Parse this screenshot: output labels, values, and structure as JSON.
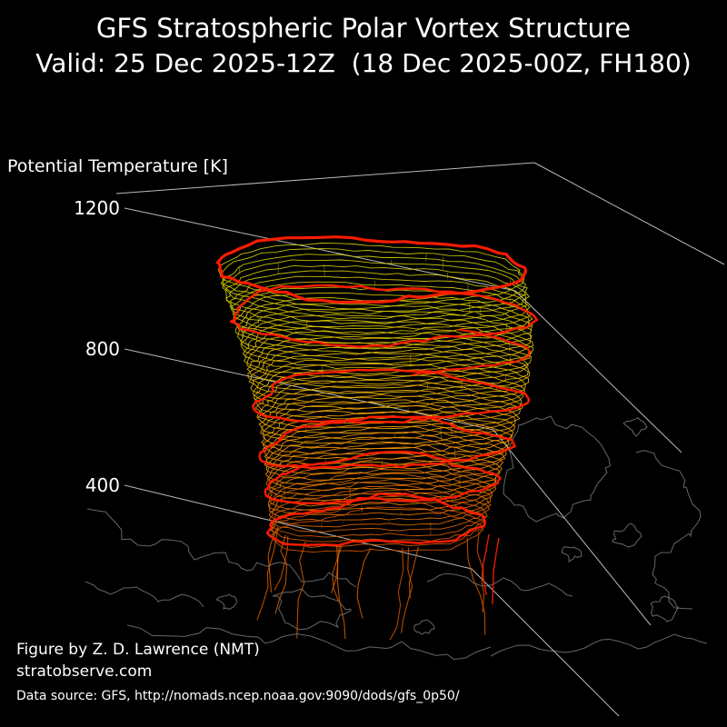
{
  "header": {
    "title": "GFS Stratospheric Polar Vortex Structure",
    "subtitle": "Valid: 25 Dec 2025-12Z  (18 Dec 2025-00Z, FH180)"
  },
  "axis": {
    "label": "Potential Temperature [K]",
    "ticks": [
      "1200",
      "800",
      "400"
    ]
  },
  "footer": {
    "credit": "Figure by Z. D. Lawrence (NMT)",
    "site": "stratobserve.com",
    "source": "Data source: GFS, http://nomads.ncep.noaa.gov:9090/dods/gfs_0p50/"
  },
  "chart_data": {
    "type": "line",
    "subtype": "3d-stacked-isentropic-contours",
    "title": "GFS Stratospheric Polar Vortex Structure",
    "valid_time": "25 Dec 2025-12Z",
    "init_time": "18 Dec 2025-00Z",
    "forecast_hour": "FH180",
    "z_axis": {
      "label": "Potential Temperature [K]",
      "ticks": [
        1200,
        800,
        400
      ]
    },
    "grid": true,
    "legend_position": "none",
    "background": "#000000",
    "axis_color": "#d9d9d9",
    "description": "Stacked contours of the stratospheric polar vortex edge on isentropic levels, colored yellow at upper levels grading to orange at lower levels, with thick red contours highlighting selected levels, drawn above a faint polar stereographic coastline map of the Northern Hemisphere.",
    "series": [
      {
        "name": "vortex-edge-contours",
        "style": "thin stacked contours",
        "color_scale": [
          "#d0d400",
          "#e6c300",
          "#ff9d00",
          "#d85500"
        ]
      },
      {
        "name": "highlight-contours",
        "style": "thick contours at selected levels",
        "color": "#ff1c00"
      },
      {
        "name": "coastlines",
        "style": "polar stereographic map outline",
        "color": "#b9b9b9"
      }
    ]
  }
}
